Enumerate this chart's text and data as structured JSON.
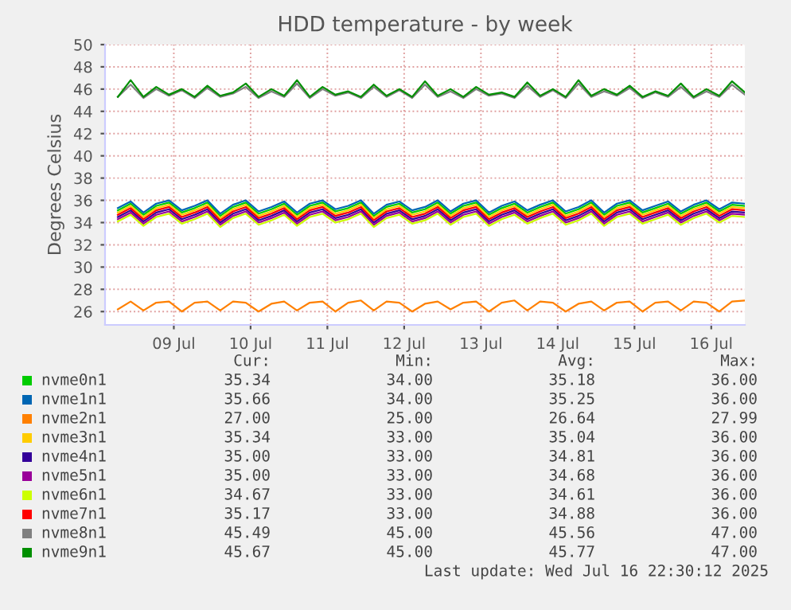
{
  "chart_data": {
    "type": "line",
    "title": "HDD temperature - by week",
    "ylabel": "Degrees Celsius",
    "x": [
      "2025-07-08T18:30",
      "2025-07-08T22:30",
      "2025-07-09T02:30",
      "2025-07-09T06:30",
      "2025-07-09T10:30",
      "2025-07-09T14:30",
      "2025-07-09T18:30",
      "2025-07-09T22:30",
      "2025-07-10T02:30",
      "2025-07-10T06:30",
      "2025-07-10T10:30",
      "2025-07-10T14:30",
      "2025-07-10T18:30",
      "2025-07-10T22:30",
      "2025-07-11T02:30",
      "2025-07-11T06:30",
      "2025-07-11T10:30",
      "2025-07-11T14:30",
      "2025-07-11T18:30",
      "2025-07-11T22:30",
      "2025-07-12T02:30",
      "2025-07-12T06:30",
      "2025-07-12T10:30",
      "2025-07-12T14:30",
      "2025-07-12T18:30",
      "2025-07-12T22:30",
      "2025-07-13T02:30",
      "2025-07-13T06:30",
      "2025-07-13T10:30",
      "2025-07-13T14:30",
      "2025-07-13T18:30",
      "2025-07-13T22:30",
      "2025-07-14T02:30",
      "2025-07-14T06:30",
      "2025-07-14T10:30",
      "2025-07-14T14:30",
      "2025-07-14T18:30",
      "2025-07-14T22:30",
      "2025-07-15T02:30",
      "2025-07-15T06:30",
      "2025-07-15T10:30",
      "2025-07-15T14:30",
      "2025-07-15T18:30",
      "2025-07-15T22:30",
      "2025-07-16T02:30",
      "2025-07-16T06:30",
      "2025-07-16T10:30",
      "2025-07-16T14:30",
      "2025-07-16T18:30",
      "2025-07-16T22:30"
    ],
    "xlim": [
      "2025-07-08T14:30",
      "2025-07-16T22:30"
    ],
    "xticks": [
      {
        "value": "2025-07-09T12:00",
        "label": "09 Jul"
      },
      {
        "value": "2025-07-10T12:00",
        "label": "10 Jul"
      },
      {
        "value": "2025-07-11T12:00",
        "label": "11 Jul"
      },
      {
        "value": "2025-07-12T12:00",
        "label": "12 Jul"
      },
      {
        "value": "2025-07-13T12:00",
        "label": "13 Jul"
      },
      {
        "value": "2025-07-14T12:00",
        "label": "14 Jul"
      },
      {
        "value": "2025-07-15T12:00",
        "label": "15 Jul"
      },
      {
        "value": "2025-07-16T12:00",
        "label": "16 Jul"
      }
    ],
    "ylim": [
      24.8,
      50
    ],
    "yticks": [
      26,
      28,
      30,
      32,
      34,
      36,
      38,
      40,
      42,
      44,
      46,
      48,
      50
    ],
    "grid": true,
    "legend": "bottom",
    "marker": "none",
    "line_style": "solid",
    "series": [
      {
        "name": "nvme0n1",
        "color": "#00cc00",
        "values": [
          35.1,
          35.7,
          34.7,
          35.5,
          35.8,
          34.9,
          35.3,
          35.8,
          34.6,
          35.4,
          35.8,
          34.8,
          35.2,
          35.7,
          34.7,
          35.5,
          35.8,
          35.0,
          35.3,
          35.8,
          34.6,
          35.4,
          35.7,
          34.9,
          35.2,
          35.8,
          34.8,
          35.5,
          35.8,
          34.7,
          35.3,
          35.7,
          34.9,
          35.4,
          35.8,
          34.8,
          35.2,
          35.8,
          34.7,
          35.5,
          35.8,
          34.9,
          35.3,
          35.7,
          34.8,
          35.4,
          35.8,
          35.0,
          35.6,
          35.5
        ]
      },
      {
        "name": "nvme1n1",
        "color": "#0066b3",
        "values": [
          35.3,
          35.9,
          34.9,
          35.7,
          36.0,
          35.1,
          35.5,
          36.0,
          34.8,
          35.6,
          36.0,
          35.0,
          35.4,
          35.9,
          34.9,
          35.7,
          36.0,
          35.2,
          35.5,
          36.0,
          34.8,
          35.6,
          35.9,
          35.1,
          35.4,
          36.0,
          35.0,
          35.7,
          36.0,
          34.9,
          35.5,
          35.9,
          35.1,
          35.6,
          36.0,
          35.0,
          35.4,
          36.0,
          34.9,
          35.7,
          36.0,
          35.1,
          35.5,
          35.9,
          35.0,
          35.6,
          36.0,
          35.2,
          35.8,
          35.7
        ]
      },
      {
        "name": "nvme2n1",
        "color": "#ff8000",
        "values": [
          26.2,
          26.9,
          26.1,
          26.8,
          26.9,
          26.0,
          26.8,
          26.9,
          26.1,
          26.9,
          26.8,
          26.0,
          26.7,
          26.9,
          26.1,
          26.8,
          26.9,
          26.0,
          26.8,
          27.0,
          26.1,
          26.9,
          26.8,
          26.0,
          26.7,
          26.9,
          26.2,
          26.8,
          26.9,
          26.0,
          26.8,
          27.0,
          26.1,
          26.9,
          26.8,
          26.0,
          26.7,
          26.9,
          26.1,
          26.8,
          26.9,
          26.0,
          26.8,
          26.9,
          26.1,
          26.9,
          26.8,
          26.0,
          26.9,
          27.0
        ]
      },
      {
        "name": "nvme3n1",
        "color": "#ffcc00",
        "values": [
          34.9,
          35.5,
          34.5,
          35.3,
          35.6,
          34.7,
          35.1,
          35.6,
          34.4,
          35.2,
          35.6,
          34.6,
          35.0,
          35.5,
          34.5,
          35.3,
          35.6,
          34.8,
          35.1,
          35.6,
          34.4,
          35.2,
          35.5,
          34.7,
          35.0,
          35.6,
          34.6,
          35.3,
          35.6,
          34.5,
          35.1,
          35.5,
          34.7,
          35.2,
          35.6,
          34.6,
          35.0,
          35.6,
          34.5,
          35.3,
          35.6,
          34.7,
          35.1,
          35.5,
          34.6,
          35.2,
          35.6,
          34.8,
          35.4,
          35.3
        ]
      },
      {
        "name": "nvme4n1",
        "color": "#330099",
        "values": [
          34.5,
          35.1,
          34.1,
          34.9,
          35.2,
          34.3,
          34.7,
          35.2,
          34.0,
          34.8,
          35.2,
          34.2,
          34.6,
          35.1,
          34.1,
          34.9,
          35.2,
          34.4,
          34.7,
          35.2,
          34.0,
          34.8,
          35.1,
          34.3,
          34.6,
          35.2,
          34.2,
          34.9,
          35.2,
          34.1,
          34.7,
          35.1,
          34.3,
          34.8,
          35.2,
          34.2,
          34.6,
          35.2,
          34.1,
          34.9,
          35.2,
          34.3,
          34.7,
          35.1,
          34.2,
          34.8,
          35.2,
          34.4,
          35.0,
          34.9
        ]
      },
      {
        "name": "nvme5n1",
        "color": "#990099",
        "values": [
          34.3,
          34.9,
          33.9,
          34.7,
          35.0,
          34.1,
          34.5,
          35.0,
          33.8,
          34.6,
          35.0,
          34.0,
          34.4,
          34.9,
          33.9,
          34.7,
          35.0,
          34.2,
          34.5,
          35.0,
          33.8,
          34.6,
          34.9,
          34.1,
          34.4,
          35.0,
          34.0,
          34.7,
          35.0,
          33.9,
          34.5,
          34.9,
          34.1,
          34.6,
          35.0,
          34.0,
          34.4,
          35.0,
          33.9,
          34.7,
          35.0,
          34.1,
          34.5,
          34.9,
          34.0,
          34.6,
          35.0,
          34.2,
          34.8,
          34.7
        ]
      },
      {
        "name": "nvme6n1",
        "color": "#ccff00",
        "values": [
          34.1,
          34.7,
          33.7,
          34.5,
          34.8,
          33.9,
          34.3,
          34.8,
          33.6,
          34.4,
          34.8,
          33.8,
          34.2,
          34.7,
          33.7,
          34.5,
          34.8,
          34.0,
          34.3,
          34.8,
          33.6,
          34.4,
          34.7,
          33.9,
          34.2,
          34.8,
          33.8,
          34.5,
          34.8,
          33.7,
          34.3,
          34.7,
          33.9,
          34.4,
          34.8,
          33.8,
          34.2,
          34.8,
          33.7,
          34.5,
          34.8,
          33.9,
          34.3,
          34.7,
          33.8,
          34.4,
          34.8,
          34.0,
          34.6,
          34.5
        ]
      },
      {
        "name": "nvme7n1",
        "color": "#ff0000",
        "values": [
          34.7,
          35.3,
          34.3,
          35.1,
          35.4,
          34.5,
          34.9,
          35.4,
          34.2,
          35.0,
          35.4,
          34.4,
          34.8,
          35.3,
          34.3,
          35.1,
          35.4,
          34.6,
          34.9,
          35.4,
          34.2,
          35.0,
          35.3,
          34.5,
          34.8,
          35.4,
          34.4,
          35.1,
          35.4,
          34.3,
          34.9,
          35.3,
          34.5,
          35.0,
          35.4,
          34.4,
          34.8,
          35.4,
          34.3,
          35.1,
          35.4,
          34.5,
          34.9,
          35.3,
          34.4,
          35.0,
          35.4,
          34.6,
          35.2,
          35.1
        ]
      },
      {
        "name": "nvme8n1",
        "color": "#808080",
        "values": [
          45.3,
          46.4,
          45.2,
          46.0,
          45.4,
          45.9,
          45.2,
          46.1,
          45.3,
          45.6,
          46.2,
          45.2,
          45.8,
          45.3,
          46.5,
          45.2,
          46.0,
          45.4,
          45.7,
          45.2,
          46.2,
          45.3,
          45.9,
          45.2,
          46.4,
          45.3,
          45.8,
          45.2,
          46.0,
          45.4,
          45.6,
          45.2,
          46.3,
          45.3,
          45.9,
          45.2,
          46.5,
          45.3,
          45.8,
          45.4,
          46.1,
          45.2,
          45.7,
          45.3,
          46.2,
          45.2,
          45.8,
          45.3,
          46.4,
          45.5
        ]
      },
      {
        "name": "nvme9n1",
        "color": "#008f00",
        "values": [
          45.3,
          46.8,
          45.3,
          46.2,
          45.5,
          46.0,
          45.3,
          46.3,
          45.4,
          45.7,
          46.5,
          45.3,
          46.0,
          45.4,
          46.8,
          45.3,
          46.2,
          45.5,
          45.8,
          45.3,
          46.4,
          45.4,
          46.0,
          45.3,
          46.7,
          45.4,
          46.0,
          45.3,
          46.2,
          45.5,
          45.7,
          45.3,
          46.6,
          45.4,
          46.0,
          45.3,
          46.8,
          45.4,
          46.0,
          45.5,
          46.3,
          45.3,
          45.8,
          45.4,
          46.5,
          45.3,
          46.0,
          45.4,
          46.7,
          45.7
        ]
      }
    ],
    "annotations": [
      "Cur:",
      "Min:",
      "Avg:",
      "Max:",
      "35.34",
      "34.00",
      "35.18",
      "36.00",
      "35.66",
      "34.00",
      "35.25",
      "36.00",
      "27.00",
      "25.00",
      "26.64",
      "27.99",
      "35.34",
      "33.00",
      "35.04",
      "36.00",
      "35.00",
      "33.00",
      "34.81",
      "36.00",
      "35.00",
      "33.00",
      "34.68",
      "36.00",
      "34.67",
      "33.00",
      "34.61",
      "36.00",
      "35.17",
      "33.00",
      "34.88",
      "36.00",
      "45.49",
      "45.00",
      "45.56",
      "47.00",
      "45.67",
      "45.00",
      "45.77",
      "47.00",
      "Last update: Wed Jul 16 22:30:12 2025"
    ]
  }
}
